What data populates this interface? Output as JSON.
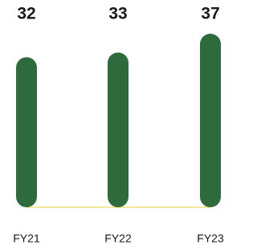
{
  "chart_data": {
    "type": "bar",
    "categories": [
      "FY21",
      "FY22",
      "FY23"
    ],
    "values": [
      32,
      33,
      37
    ],
    "color": "#2d6a3c"
  }
}
